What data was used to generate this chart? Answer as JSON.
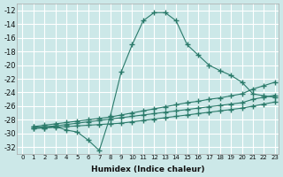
{
  "bg_color": "#cce8e8",
  "grid_color": "#ffffff",
  "line_color": "#2a7a6a",
  "xlabel": "Humidex (Indice chaleur)",
  "xlim": [
    -0.5,
    23.3
  ],
  "ylim": [
    -33,
    -11
  ],
  "yticks": [
    -12,
    -14,
    -16,
    -18,
    -20,
    -22,
    -24,
    -26,
    -28,
    -30,
    -32
  ],
  "xticks": [
    0,
    1,
    2,
    3,
    4,
    5,
    6,
    7,
    8,
    9,
    10,
    11,
    12,
    13,
    14,
    15,
    16,
    17,
    18,
    19,
    20,
    21,
    22,
    23
  ],
  "series": [
    {
      "x": [
        1,
        2,
        3,
        4,
        5,
        6,
        7,
        8,
        9,
        10,
        11,
        12,
        13,
        14,
        15,
        16,
        17,
        18,
        19,
        20,
        21,
        22,
        23
      ],
      "y": [
        -29.0,
        -29.2,
        -29.0,
        -29.5,
        -29.8,
        -31.0,
        -32.5,
        -27.5,
        -21.0,
        -17.0,
        -13.5,
        -12.3,
        -12.3,
        -13.5,
        -17.0,
        -18.5,
        -20.0,
        -20.8,
        -21.5,
        -22.5,
        -24.2,
        -24.5,
        -24.7
      ]
    },
    {
      "x": [
        1,
        2,
        3,
        4,
        5,
        6,
        7,
        8,
        9,
        10,
        11,
        12,
        13,
        14,
        15,
        16,
        17,
        18,
        19,
        20,
        21,
        22,
        23
      ],
      "y": [
        -29.0,
        -28.8,
        -28.6,
        -28.4,
        -28.2,
        -28.0,
        -27.8,
        -27.6,
        -27.3,
        -27.0,
        -26.7,
        -26.4,
        -26.1,
        -25.8,
        -25.5,
        -25.3,
        -25.0,
        -24.8,
        -24.5,
        -24.2,
        -23.5,
        -23.0,
        -22.5
      ]
    },
    {
      "x": [
        1,
        2,
        3,
        4,
        5,
        6,
        7,
        8,
        9,
        10,
        11,
        12,
        13,
        14,
        15,
        16,
        17,
        18,
        19,
        20,
        21,
        22,
        23
      ],
      "y": [
        -29.2,
        -29.0,
        -28.9,
        -28.7,
        -28.5,
        -28.3,
        -28.1,
        -27.9,
        -27.7,
        -27.5,
        -27.3,
        -27.1,
        -26.9,
        -26.7,
        -26.5,
        -26.3,
        -26.1,
        -25.9,
        -25.7,
        -25.5,
        -25.0,
        -24.7,
        -24.4
      ]
    },
    {
      "x": [
        1,
        2,
        3,
        4,
        5,
        6,
        7,
        8,
        9,
        10,
        11,
        12,
        13,
        14,
        15,
        16,
        17,
        18,
        19,
        20,
        21,
        22,
        23
      ],
      "y": [
        -29.3,
        -29.2,
        -29.1,
        -29.0,
        -28.9,
        -28.8,
        -28.7,
        -28.6,
        -28.5,
        -28.3,
        -28.1,
        -27.9,
        -27.7,
        -27.5,
        -27.3,
        -27.1,
        -26.9,
        -26.7,
        -26.5,
        -26.3,
        -26.0,
        -25.7,
        -25.4
      ]
    }
  ]
}
